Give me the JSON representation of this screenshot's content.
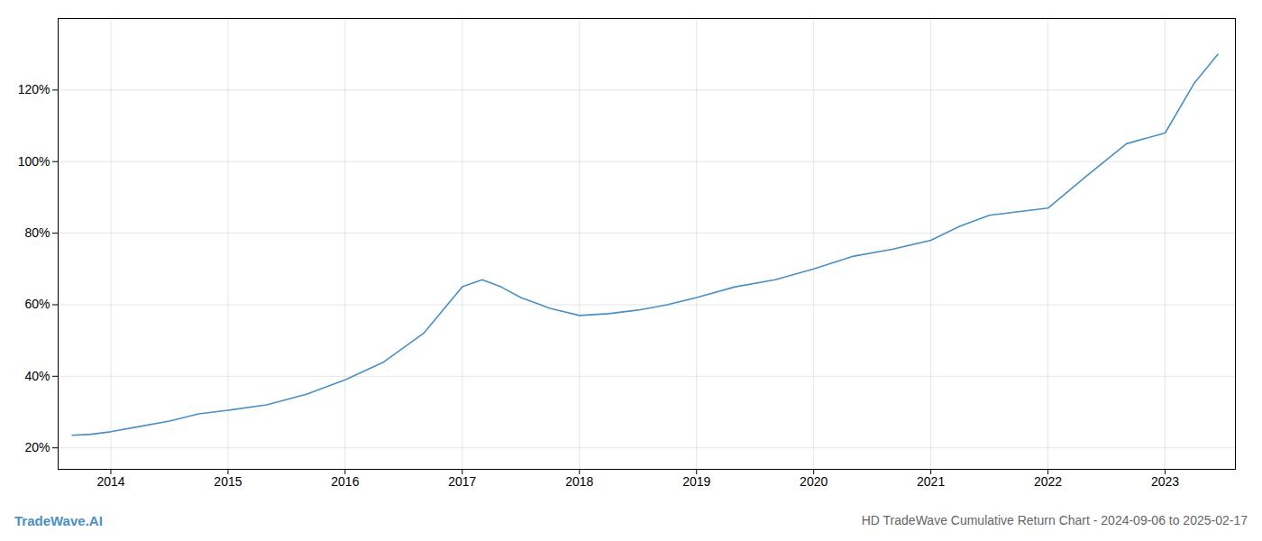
{
  "chart_data": {
    "type": "line",
    "title": "HD TradeWave Cumulative Return Chart - 2024-09-06 to 2025-02-17",
    "annotations": [
      "TradeWave.AI"
    ],
    "color": "#4a90c4",
    "x": [
      2013.67,
      2013.83,
      2014.0,
      2014.25,
      2014.5,
      2014.75,
      2015.0,
      2015.33,
      2015.67,
      2016.0,
      2016.33,
      2016.67,
      2017.0,
      2017.17,
      2017.33,
      2017.5,
      2017.75,
      2018.0,
      2018.25,
      2018.5,
      2018.75,
      2019.0,
      2019.33,
      2019.67,
      2020.0,
      2020.33,
      2020.67,
      2021.0,
      2021.25,
      2021.5,
      2021.75,
      2022.0,
      2022.33,
      2022.67,
      2023.0,
      2023.25,
      2023.45
    ],
    "values": [
      23.5,
      23.8,
      24.5,
      26.0,
      27.5,
      29.5,
      30.5,
      32.0,
      35.0,
      39.0,
      44.0,
      52.0,
      65.0,
      67.0,
      65.0,
      62.0,
      59.0,
      57.0,
      57.5,
      58.5,
      60.0,
      62.0,
      65.0,
      67.0,
      70.0,
      73.5,
      75.5,
      78.0,
      82.0,
      85.0,
      86.0,
      87.0,
      96.0,
      105.0,
      108.0,
      122.0,
      130.0
    ],
    "xlim": [
      2013.55,
      2023.6
    ],
    "ylim": [
      14,
      140
    ],
    "xticks": [
      2014,
      2015,
      2016,
      2017,
      2018,
      2019,
      2020,
      2021,
      2022,
      2023
    ],
    "yticks": [
      {
        "value": 20,
        "label": "20%"
      },
      {
        "value": 40,
        "label": "40%"
      },
      {
        "value": 60,
        "label": "60%"
      },
      {
        "value": 80,
        "label": "80%"
      },
      {
        "value": 100,
        "label": "100%"
      },
      {
        "value": 120,
        "label": "120%"
      }
    ],
    "grid": true
  }
}
